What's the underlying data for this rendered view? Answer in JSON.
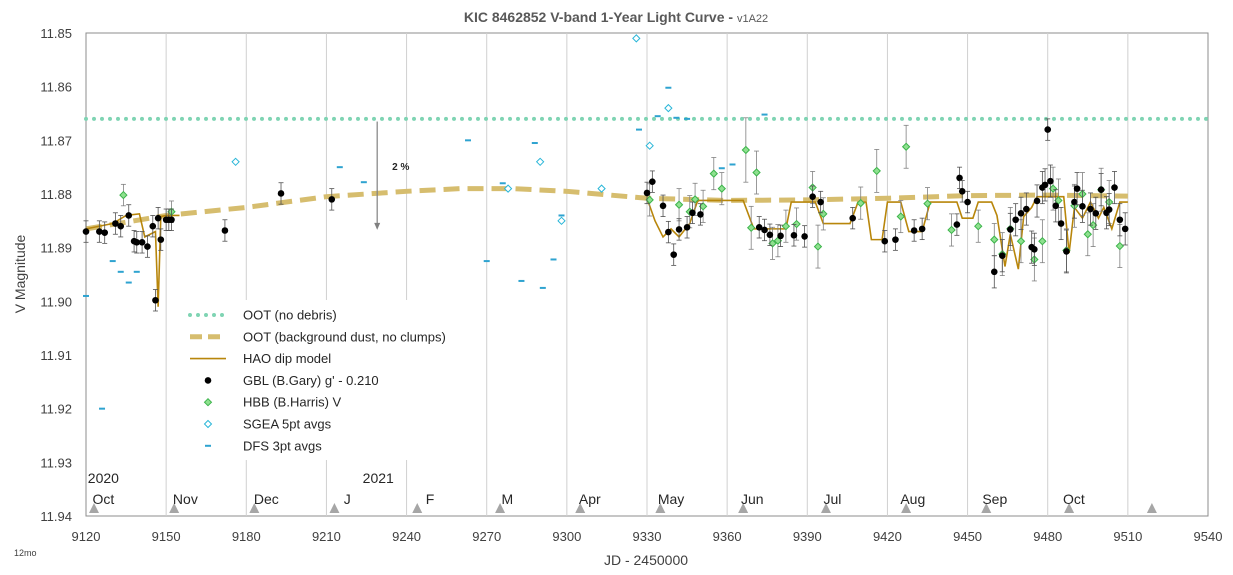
{
  "chart_data": {
    "type": "scatter",
    "title": "KIC 8462852 V-band 1-Year Light Curve - ",
    "title_version": "v1A22",
    "xlabel": "JD - 2450000",
    "ylabel": "V Magnitude",
    "corner_label": "12mo",
    "xlim": [
      9120,
      9540
    ],
    "ylim": [
      11.85,
      11.94
    ],
    "y_inverted": true,
    "x_ticks": [
      9120,
      9150,
      9180,
      9210,
      9240,
      9270,
      9300,
      9330,
      9360,
      9390,
      9420,
      9450,
      9480,
      9510,
      9540
    ],
    "y_ticks": [
      11.85,
      11.86,
      11.87,
      11.88,
      11.89,
      11.9,
      11.91,
      11.92,
      11.93,
      11.94
    ],
    "y_tick_labels": [
      "11.85",
      "11.86",
      "11.87",
      "11.88",
      "11.89",
      "11.90",
      "11.91",
      "11.92",
      "11.93",
      "11.94"
    ],
    "grid": "vertical",
    "colors": {
      "gbl": "#000000",
      "hbb": "#3cb44b",
      "sgea": "#29b6d8",
      "dfs": "#2ea3d0",
      "oot_nodebris": "#7fd4b3",
      "oot_dust": "#d6bd6e",
      "model": "#b8860b",
      "grid": "#d0d0d0",
      "month_marker": "#a6a6a6"
    },
    "year_labels": [
      {
        "x": 9126.5,
        "text": "2020"
      },
      {
        "x": 9229.4,
        "text": "2021"
      }
    ],
    "month_labels": [
      {
        "x": 9126.5,
        "text": "Oct"
      },
      {
        "x": 9157.2,
        "text": "Nov"
      },
      {
        "x": 9187.5,
        "text": "Dec"
      },
      {
        "x": 9217.8,
        "text": "J"
      },
      {
        "x": 9248.8,
        "text": "F"
      },
      {
        "x": 9277.7,
        "text": "M"
      },
      {
        "x": 9308.6,
        "text": "Apr"
      },
      {
        "x": 9339.0,
        "text": "May"
      },
      {
        "x": 9369.4,
        "text": "Jun"
      },
      {
        "x": 9399.4,
        "text": "Jul"
      },
      {
        "x": 9429.5,
        "text": "Aug"
      },
      {
        "x": 9460.2,
        "text": "Sep"
      },
      {
        "x": 9489.8,
        "text": "Oct"
      }
    ],
    "month_markers": [
      9123,
      9153,
      9183,
      9213,
      9244,
      9275,
      9305,
      9335,
      9366,
      9397,
      9427,
      9457,
      9488,
      9519
    ],
    "annotation": {
      "text": "2 %",
      "x": 9229,
      "y_top": 11.8665,
      "y_bottom": 11.8865
    },
    "legend": {
      "placement": "lower-left",
      "entries": [
        {
          "label": "OOT (no debris)",
          "symbol": "dotted"
        },
        {
          "label": "OOT (background dust, no clumps)",
          "symbol": "dashed"
        },
        {
          "label": "HAO dip model",
          "symbol": "line"
        },
        {
          "label": "GBL (B.Gary) g' - 0.210",
          "symbol": "dot"
        },
        {
          "label": "HBB (B.Harris) V",
          "symbol": "diamond-green"
        },
        {
          "label": "SGEA 5pt avgs",
          "symbol": "diamond-open"
        },
        {
          "label": "DFS  3pt avgs",
          "symbol": "dash"
        }
      ]
    },
    "series": [
      {
        "name": "OOT (no debris)",
        "kind": "hline",
        "y": 11.866
      },
      {
        "name": "OOT (background dust, no clumps)",
        "kind": "curve",
        "x": [
          9120,
          9150,
          9180,
          9210,
          9240,
          9260,
          9280,
          9300,
          9330,
          9360,
          9390,
          9420,
          9450,
          9480,
          9510
        ],
        "y": [
          11.8865,
          11.884,
          11.8825,
          11.8805,
          11.8795,
          11.879,
          11.879,
          11.8795,
          11.8808,
          11.8812,
          11.8811,
          11.8808,
          11.8803,
          11.8802,
          11.8804
        ]
      },
      {
        "name": "HAO dip model",
        "kind": "line",
        "x": [
          9120,
          9130,
          9135,
          9140,
          9142,
          9146,
          9147,
          9148,
          9150,
          9155,
          9330,
          9333,
          9336,
          9339,
          9342,
          9346,
          9349,
          9352,
          9355,
          9366,
          9370,
          9371,
          9375,
          9380,
          9382,
          9384,
          9386,
          9393,
          9396,
          9398,
          9406,
          9409,
          9412,
          9414,
          9418,
          9420,
          9425,
          9428,
          9433,
          9436,
          9446,
          9448,
          9452,
          9454,
          9459,
          9461,
          9464,
          9466,
          9469,
          9471,
          9474,
          9476,
          9478,
          9482,
          9486,
          9488,
          9490,
          9493,
          9496,
          9499,
          9501,
          9504,
          9507,
          9510
        ],
        "y": [
          11.8865,
          11.8855,
          11.884,
          11.8837,
          11.888,
          11.887,
          11.901,
          11.8842,
          11.884,
          11.884,
          11.8808,
          11.885,
          11.888,
          11.8865,
          11.888,
          11.8855,
          11.8812,
          11.8812,
          11.8812,
          11.8812,
          11.8865,
          11.8865,
          11.8865,
          11.8865,
          11.8865,
          11.8815,
          11.8815,
          11.8815,
          11.8855,
          11.8855,
          11.8855,
          11.8815,
          11.8815,
          11.8885,
          11.8885,
          11.8815,
          11.8815,
          11.887,
          11.887,
          11.8815,
          11.8815,
          11.8845,
          11.8845,
          11.8815,
          11.8815,
          11.884,
          11.8935,
          11.8875,
          11.894,
          11.8842,
          11.8825,
          11.8805,
          11.8805,
          11.8805,
          11.8805,
          11.891,
          11.8825,
          11.8845,
          11.8815,
          11.8845,
          11.8825,
          11.8865,
          11.8815,
          11.8815
        ]
      },
      {
        "name": "GBL (B.Gary) g' - 0.210",
        "kind": "points-err",
        "x": [
          9120,
          9125,
          9127,
          9131,
          9133,
          9136,
          9138,
          9139,
          9141,
          9143,
          9145,
          9146,
          9147,
          9148,
          9150,
          9151,
          9152,
          9172,
          9193,
          9212,
          9330,
          9332,
          9336,
          9338,
          9340,
          9342,
          9345,
          9347,
          9350,
          9372,
          9374,
          9376,
          9380,
          9385,
          9389,
          9392,
          9395,
          9407,
          9419,
          9423,
          9430,
          9433,
          9446,
          9447,
          9448,
          9450,
          9460,
          9463,
          9466,
          9468,
          9470,
          9472,
          9474,
          9475,
          9476,
          9478,
          9479,
          9480,
          9481,
          9483,
          9485,
          9487,
          9490,
          9491,
          9493,
          9496,
          9498,
          9500,
          9502,
          9503,
          9505,
          9507,
          9509
        ],
        "y": [
          11.887,
          11.887,
          11.8872,
          11.8855,
          11.886,
          11.884,
          11.8888,
          11.889,
          11.889,
          11.8898,
          11.886,
          11.8998,
          11.8845,
          11.8885,
          11.8848,
          11.8848,
          11.8848,
          11.8868,
          11.8799,
          11.881,
          11.8798,
          11.8777,
          11.8822,
          11.8871,
          11.8913,
          11.8866,
          11.8862,
          11.8835,
          11.8838,
          11.8862,
          11.8867,
          11.8876,
          11.8878,
          11.8877,
          11.8879,
          11.8805,
          11.8815,
          11.8845,
          11.8888,
          11.8885,
          11.8868,
          11.8865,
          11.8857,
          11.877,
          11.8795,
          11.8815,
          11.8945,
          11.8915,
          11.8866,
          11.8848,
          11.8836,
          11.8828,
          11.8899,
          11.8903,
          11.8813,
          11.8788,
          11.8783,
          11.868,
          11.8776,
          11.8822,
          11.8855,
          11.8907,
          11.8815,
          11.879,
          11.8823,
          11.8828,
          11.8836,
          11.8792,
          11.8835,
          11.8829,
          11.8788,
          11.8848,
          11.8865
        ],
        "err": [
          0.002,
          0.002,
          0.002,
          0.002,
          0.002,
          0.002,
          0.002,
          0.002,
          0.002,
          0.002,
          0.002,
          0.002,
          0.002,
          0.002,
          0.002,
          0.002,
          0.002,
          0.002,
          0.002,
          0.002,
          0.002,
          0.002,
          0.002,
          0.002,
          0.002,
          0.002,
          0.002,
          0.002,
          0.002,
          0.002,
          0.002,
          0.002,
          0.002,
          0.002,
          0.002,
          0.002,
          0.002,
          0.002,
          0.002,
          0.002,
          0.002,
          0.002,
          0.002,
          0.002,
          0.002,
          0.002,
          0.003,
          0.003,
          0.003,
          0.003,
          0.003,
          0.003,
          0.003,
          0.003,
          0.003,
          0.003,
          0.003,
          0.002,
          0.003,
          0.003,
          0.003,
          0.004,
          0.003,
          0.003,
          0.003,
          0.003,
          0.003,
          0.003,
          0.003,
          0.003,
          0.003,
          0.003,
          0.003
        ]
      },
      {
        "name": "HBB (B.Harris) V",
        "kind": "points-err",
        "x": [
          9134,
          9152,
          9331,
          9342,
          9346,
          9348,
          9351,
          9355,
          9358,
          9367,
          9369,
          9371,
          9377,
          9379,
          9382,
          9386,
          9392,
          9394,
          9396,
          9410,
          9416,
          9425,
          9427,
          9435,
          9444,
          9454,
          9460,
          9463,
          9466,
          9470,
          9475,
          9478,
          9482,
          9484,
          9487,
          9490,
          9493,
          9495,
          9497,
          9500,
          9503,
          9507
        ],
        "y": [
          11.8802,
          11.8833,
          11.8811,
          11.882,
          11.8833,
          11.881,
          11.8823,
          11.8762,
          11.879,
          11.8718,
          11.8863,
          11.876,
          11.8892,
          11.8887,
          11.886,
          11.8856,
          11.8788,
          11.8898,
          11.8837,
          11.8817,
          11.8757,
          11.8842,
          11.8712,
          11.8818,
          11.8867,
          11.886,
          11.8885,
          11.8912,
          11.8865,
          11.8888,
          11.8922,
          11.8888,
          11.879,
          11.8812,
          11.8905,
          11.8822,
          11.88,
          11.8875,
          11.8858,
          11.8792,
          11.8815,
          11.8897
        ],
        "err": [
          0.002,
          0.002,
          0.003,
          0.003,
          0.003,
          0.003,
          0.003,
          0.003,
          0.003,
          0.006,
          0.004,
          0.004,
          0.003,
          0.003,
          0.003,
          0.003,
          0.003,
          0.004,
          0.003,
          0.003,
          0.004,
          0.003,
          0.004,
          0.003,
          0.003,
          0.003,
          0.003,
          0.004,
          0.004,
          0.004,
          0.004,
          0.004,
          0.004,
          0.004,
          0.004,
          0.004,
          0.004,
          0.004,
          0.004,
          0.004,
          0.004,
          0.004
        ]
      },
      {
        "name": "SGEA 5pt avgs",
        "kind": "diamonds",
        "x": [
          9176,
          9278,
          9290,
          9298,
          9313,
          9326,
          9331,
          9338
        ],
        "y": [
          11.874,
          11.879,
          11.874,
          11.885,
          11.879,
          11.851,
          11.871,
          11.864
        ]
      },
      {
        "name": "DFS  3pt avgs",
        "kind": "dashes",
        "x": [
          9120,
          9126,
          9130,
          9133,
          9136,
          9139,
          9215,
          9224,
          9263,
          9270,
          9276,
          9283,
          9288,
          9291,
          9295,
          9298,
          9327,
          9334,
          9338,
          9341,
          9345,
          9358,
          9362,
          9374
        ],
        "y": [
          11.899,
          11.92,
          11.8925,
          11.8945,
          11.8965,
          11.8945,
          11.875,
          11.8778,
          11.87,
          11.8925,
          11.878,
          11.8962,
          11.8705,
          11.8975,
          11.8922,
          11.884,
          11.868,
          11.8655,
          11.8602,
          11.8658,
          11.866,
          11.8752,
          11.8745,
          11.8652
        ]
      }
    ]
  }
}
